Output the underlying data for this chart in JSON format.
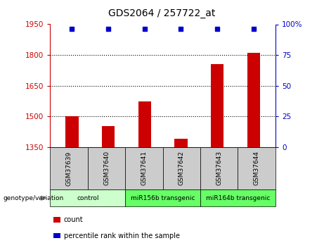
{
  "title": "GDS2064 / 257722_at",
  "samples": [
    "GSM37639",
    "GSM37640",
    "GSM37641",
    "GSM37642",
    "GSM37643",
    "GSM37644"
  ],
  "counts": [
    1502,
    1453,
    1573,
    1390,
    1754,
    1810
  ],
  "percentile_ranks": [
    100,
    100,
    100,
    100,
    100,
    100
  ],
  "ylim_left": [
    1350,
    1950
  ],
  "ylim_right": [
    0,
    100
  ],
  "yticks_left": [
    1350,
    1500,
    1650,
    1800,
    1950
  ],
  "yticks_right": [
    0,
    25,
    50,
    75,
    100
  ],
  "hlines": [
    1500,
    1650,
    1800
  ],
  "bar_color": "#cc0000",
  "percentile_color": "#0000cc",
  "groups": [
    {
      "label": "control",
      "start": 0,
      "end": 2,
      "color": "#ccffcc"
    },
    {
      "label": "miR156b transgenic",
      "start": 2,
      "end": 4,
      "color": "#66ff66"
    },
    {
      "label": "miR164b transgenic",
      "start": 4,
      "end": 6,
      "color": "#66ff66"
    }
  ],
  "genotype_label": "genotype/variation",
  "bar_width": 0.35,
  "left_axis_color": "#cc0000",
  "right_axis_color": "#0000cc",
  "sample_box_color": "#cccccc",
  "legend_count_label": "count",
  "legend_pct_label": "percentile rank within the sample"
}
